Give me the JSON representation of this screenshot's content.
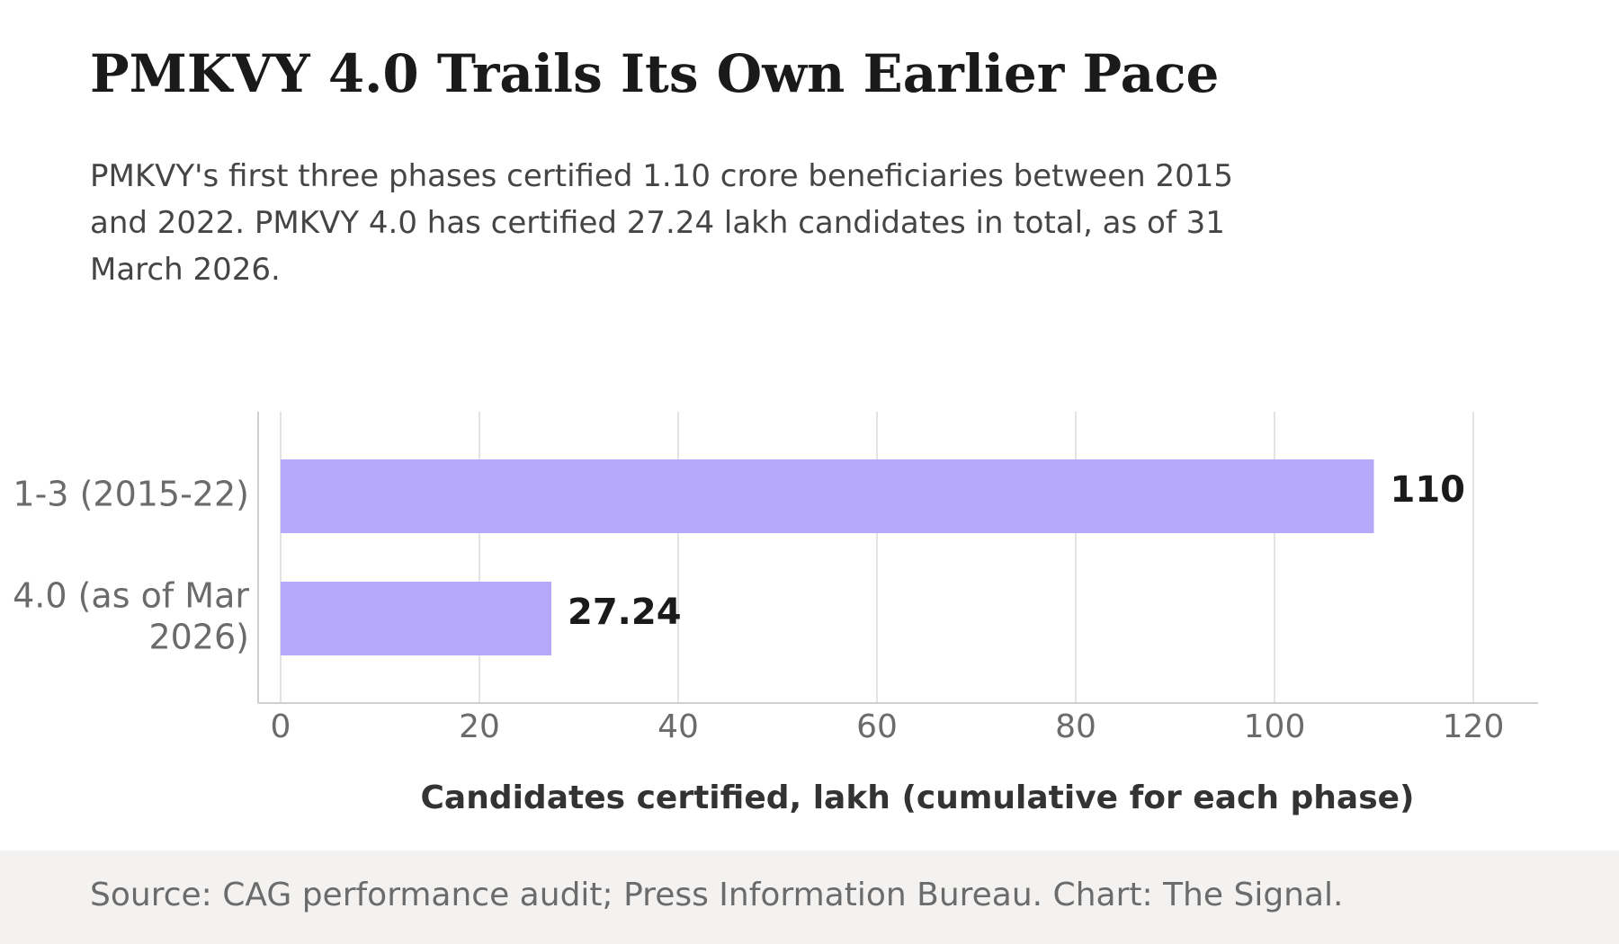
{
  "title": "PMKVY 4.0 Trails Its Own Earlier Pace",
  "subtitle": "PMKVY's first three phases certified 1.10 crore beneficiaries between 2015 and 2022. PMKVY 4.0 has certified 27.24 lakh candidates in total, as of 31 March 2026.",
  "footer": {
    "source": "Source: CAG performance audit; Press Information Bureau. Chart: The Signal."
  },
  "chart_data": {
    "type": "bar",
    "orientation": "horizontal",
    "categories": [
      [
        "1-3 (2015-22)"
      ],
      [
        "4.0 (as of Mar",
        "2026)"
      ]
    ],
    "values": [
      110,
      27.24
    ],
    "value_labels": [
      "110",
      "27.24"
    ],
    "xlabel": "Candidates certified, lakh (cumulative for each phase)",
    "xlim": [
      0,
      120
    ],
    "xticks": [
      0,
      20,
      40,
      60,
      80,
      100,
      120
    ],
    "grid": "vertical",
    "bar_color": "#b6a8fb"
  }
}
